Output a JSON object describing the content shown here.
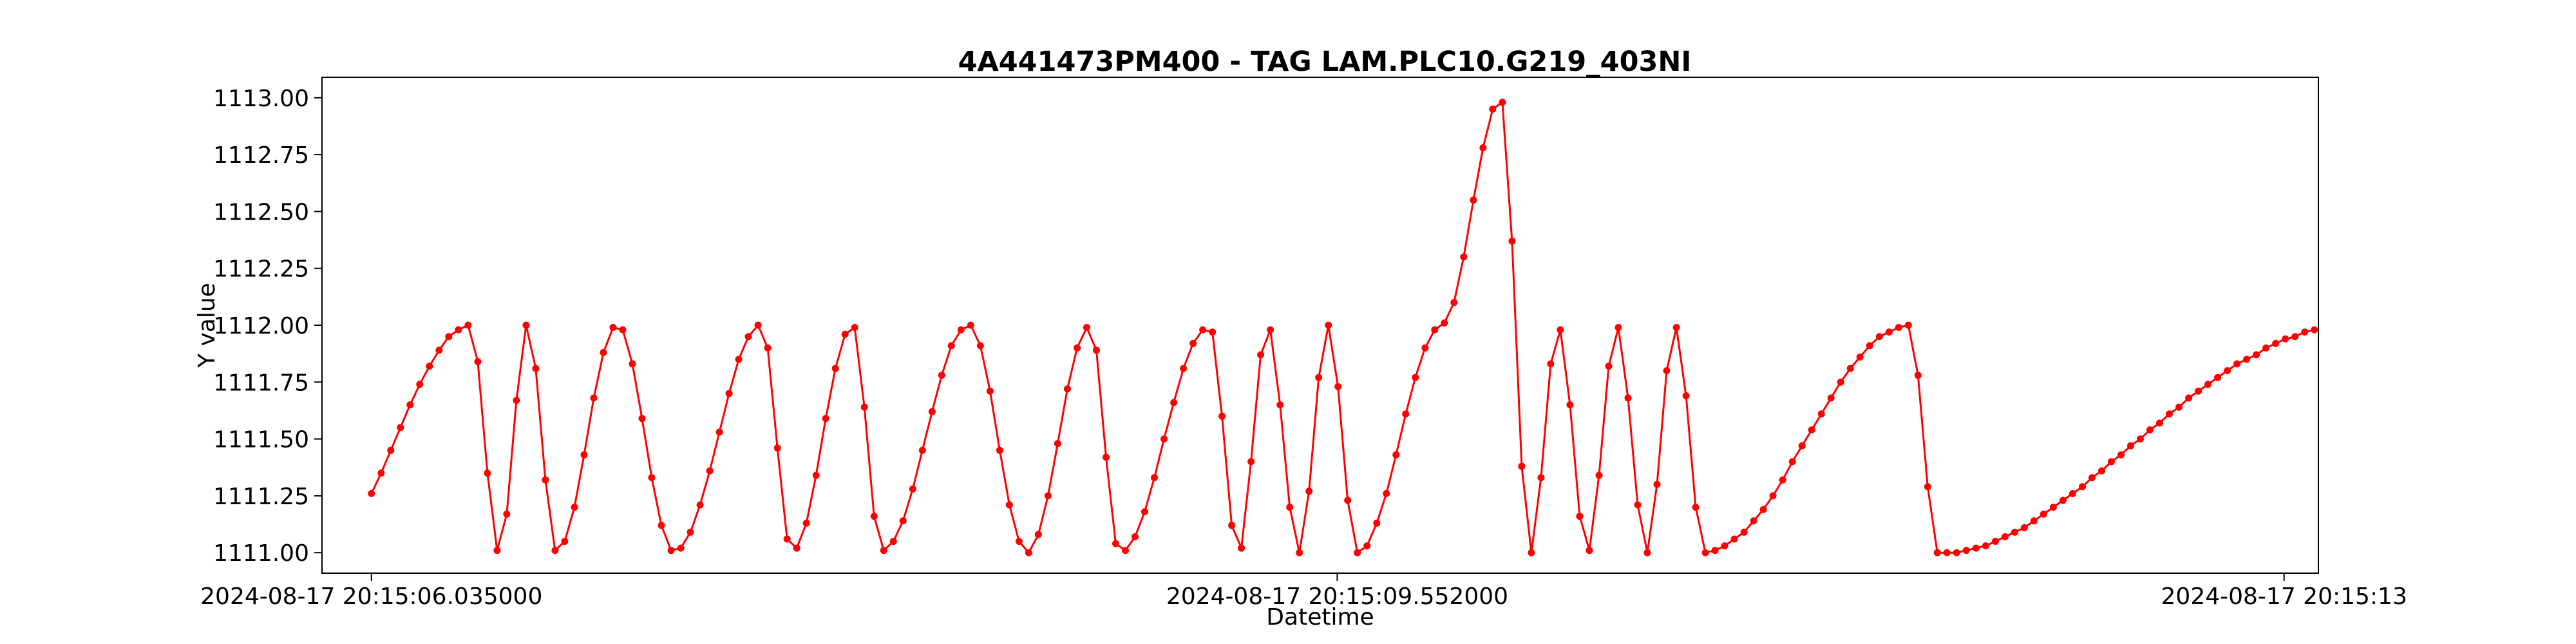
{
  "chart_data": {
    "type": "line",
    "title": "4A441473PM400 - TAG LAM.PLC10.G219_403NI",
    "xlabel": "Datetime",
    "ylabel": "Y value",
    "ylim": [
      1110.91,
      1113.09
    ],
    "xlim": [
      -0.18,
      7.09
    ],
    "grid": false,
    "x_tick_labels": [
      {
        "value": 0,
        "label": "2024-08-17 20:15:06.035000"
      },
      {
        "value": 3.517,
        "label": "2024-08-17 20:15:09.552000"
      },
      {
        "value": 6.965,
        "label": "2024-08-17 20:15:13"
      }
    ],
    "y_ticks": [
      1111.0,
      1111.25,
      1111.5,
      1111.75,
      1112.0,
      1112.25,
      1112.5,
      1112.75,
      1113.0
    ],
    "y_tick_labels": [
      "1111.00",
      "1111.25",
      "1111.50",
      "1111.75",
      "1112.00",
      "1112.25",
      "1112.50",
      "1112.75",
      "1113.00"
    ],
    "series": [
      {
        "color": "#ff0000",
        "x_start": 0,
        "x_step": 0.0352,
        "values": [
          1111.26,
          1111.35,
          1111.45,
          1111.55,
          1111.65,
          1111.74,
          1111.82,
          1111.89,
          1111.95,
          1111.98,
          1112.0,
          1111.84,
          1111.35,
          1111.01,
          1111.17,
          1111.67,
          1112.0,
          1111.81,
          1111.32,
          1111.01,
          1111.05,
          1111.2,
          1111.43,
          1111.68,
          1111.88,
          1111.99,
          1111.98,
          1111.83,
          1111.59,
          1111.33,
          1111.12,
          1111.01,
          1111.02,
          1111.09,
          1111.21,
          1111.36,
          1111.53,
          1111.7,
          1111.85,
          1111.95,
          1112.0,
          1111.9,
          1111.46,
          1111.06,
          1111.02,
          1111.13,
          1111.34,
          1111.59,
          1111.81,
          1111.96,
          1111.99,
          1111.64,
          1111.16,
          1111.01,
          1111.05,
          1111.14,
          1111.28,
          1111.45,
          1111.62,
          1111.78,
          1111.91,
          1111.98,
          1112.0,
          1111.91,
          1111.71,
          1111.45,
          1111.21,
          1111.05,
          1111.0,
          1111.08,
          1111.25,
          1111.48,
          1111.72,
          1111.9,
          1111.99,
          1111.89,
          1111.42,
          1111.04,
          1111.01,
          1111.07,
          1111.18,
          1111.33,
          1111.5,
          1111.66,
          1111.81,
          1111.92,
          1111.98,
          1111.97,
          1111.6,
          1111.12,
          1111.02,
          1111.4,
          1111.87,
          1111.98,
          1111.65,
          1111.2,
          1111.0,
          1111.27,
          1111.77,
          1112.0,
          1111.73,
          1111.23,
          1111.0,
          1111.03,
          1111.13,
          1111.26,
          1111.43,
          1111.61,
          1111.77,
          1111.9,
          1111.98,
          1112.01,
          1112.1,
          1112.3,
          1112.55,
          1112.78,
          1112.95,
          1112.98,
          1112.37,
          1111.38,
          1111.0,
          1111.33,
          1111.83,
          1111.98,
          1111.65,
          1111.16,
          1111.01,
          1111.34,
          1111.82,
          1111.99,
          1111.68,
          1111.21,
          1111.0,
          1111.3,
          1111.8,
          1111.99,
          1111.69,
          1111.2,
          1111.0,
          1111.01,
          1111.03,
          1111.06,
          1111.09,
          1111.14,
          1111.19,
          1111.25,
          1111.32,
          1111.4,
          1111.47,
          1111.54,
          1111.61,
          1111.68,
          1111.75,
          1111.81,
          1111.86,
          1111.91,
          1111.95,
          1111.97,
          1111.99,
          1112.0,
          1111.78,
          1111.29,
          1111.0,
          1111.0,
          1111.0,
          1111.01,
          1111.02,
          1111.03,
          1111.05,
          1111.07,
          1111.09,
          1111.11,
          1111.14,
          1111.17,
          1111.2,
          1111.23,
          1111.26,
          1111.29,
          1111.33,
          1111.36,
          1111.4,
          1111.43,
          1111.47,
          1111.5,
          1111.54,
          1111.57,
          1111.61,
          1111.64,
          1111.68,
          1111.71,
          1111.74,
          1111.77,
          1111.8,
          1111.83,
          1111.85,
          1111.87,
          1111.9,
          1111.92,
          1111.94,
          1111.95,
          1111.97,
          1111.98
        ]
      }
    ]
  }
}
